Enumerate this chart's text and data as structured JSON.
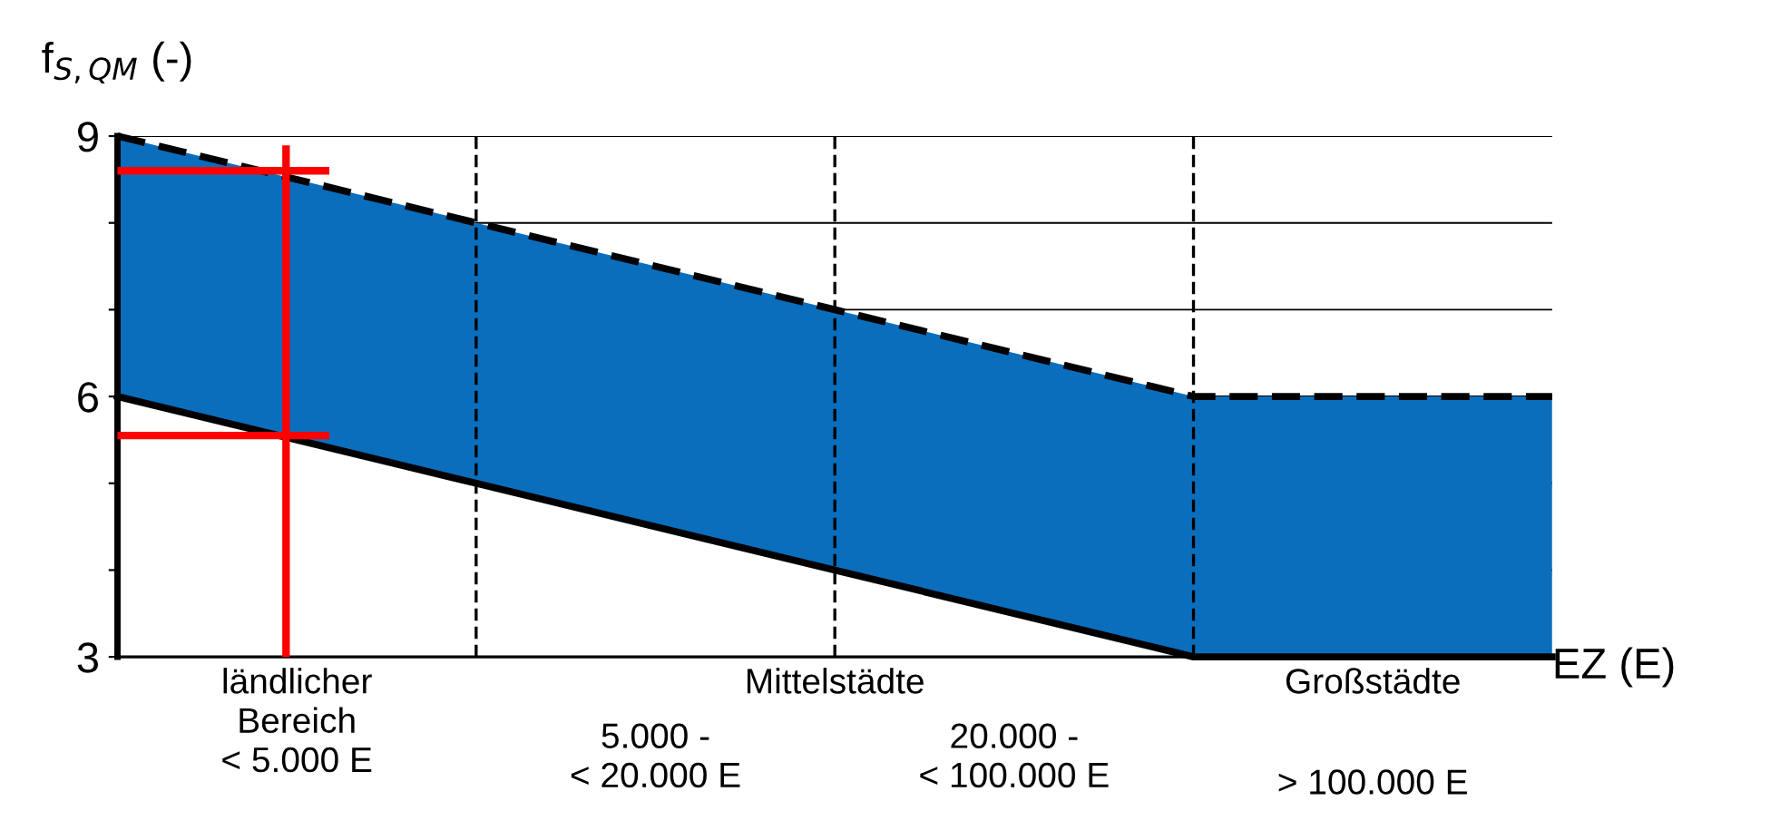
{
  "chart_data": {
    "type": "area",
    "xlabel": "EZ (E)",
    "ylabel": "f$_{S,QM}$ (-)",
    "categories": [
      null,
      null,
      null,
      null,
      null
    ],
    "stacked": true,
    "series": [
      {
        "color": "#ffffff",
        "values": [
          6,
          5,
          4,
          3,
          3
        ],
        "line_style": "solid"
      },
      {
        "color": "#0a6ebd",
        "values": [
          3,
          3,
          3,
          3,
          3
        ],
        "line_style": "dashed"
      }
    ],
    "ylim": [
      3,
      9
    ],
    "yticks": [
      3,
      {
        "value": 4,
        "label": null
      },
      {
        "value": 5,
        "label": null
      },
      6,
      {
        "value": 7,
        "label": null
      },
      {
        "value": 8,
        "label": null
      },
      9
    ],
    "grid": true,
    "ref_lines": [
      {
        "axis": "y",
        "value": 8.6,
        "color": "#ff0000",
        "line_style": "solid"
      },
      {
        "axis": "y",
        "value": 5.55,
        "color": "#ff0000",
        "line_style": "solid"
      }
    ],
    "annotations": [
      "ländlicher\nBereich\n< 5.000 E",
      "Mittelstädte",
      "5.000 -\n< 20.000 E",
      "20.000 -\n< 100.000 E",
      "Großstädte",
      "> 100.000 E"
    ]
  }
}
